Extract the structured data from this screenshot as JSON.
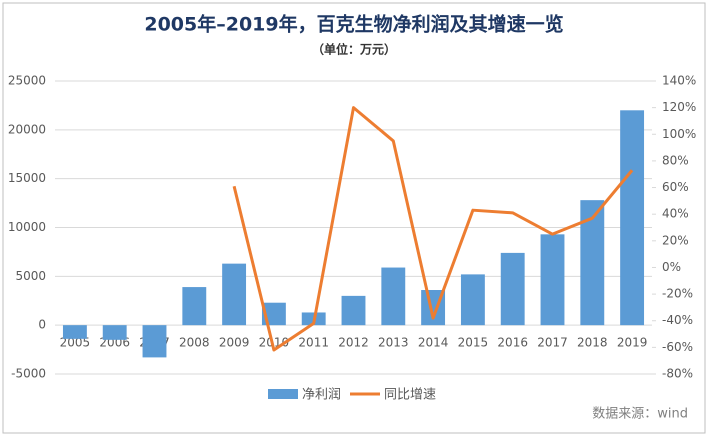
{
  "chart_data": {
    "type": "bar+line",
    "title": "2005年–2019年，百克生物净利润及其增速一览",
    "subtitle": "（单位：万元）",
    "source": "数据来源：wind",
    "categories": [
      "2005",
      "2006",
      "2007",
      "2008",
      "2009",
      "2010",
      "2011",
      "2012",
      "2013",
      "2014",
      "2015",
      "2016",
      "2017",
      "2018",
      "2019"
    ],
    "series": [
      {
        "name": "净利润",
        "type": "bar",
        "color": "#5b9bd5",
        "axis": "y",
        "values": [
          -1400,
          -1500,
          -3300,
          3900,
          6300,
          2300,
          1300,
          3000,
          5900,
          3600,
          5200,
          7400,
          9300,
          12800,
          22000
        ]
      },
      {
        "name": "同比增速",
        "type": "line",
        "color": "#ed7d31",
        "axis": "y2",
        "values": [
          null,
          null,
          null,
          null,
          61,
          -62,
          -42,
          120,
          95,
          -38,
          43,
          41,
          25,
          37,
          73
        ]
      }
    ],
    "ylim": [
      -5000,
      25000
    ],
    "yticks": [
      -5000,
      0,
      5000,
      10000,
      15000,
      20000,
      25000
    ],
    "y2lim": [
      -80,
      140
    ],
    "y2ticks": [
      {
        "value": -80,
        "label": "-80%"
      },
      {
        "value": -60,
        "label": "-60%"
      },
      {
        "value": -40,
        "label": "-40%"
      },
      {
        "value": -20,
        "label": "-20%"
      },
      {
        "value": 0,
        "label": "0%"
      },
      {
        "value": 20,
        "label": "20%"
      },
      {
        "value": 40,
        "label": "40%"
      },
      {
        "value": 60,
        "label": "60%"
      },
      {
        "value": 80,
        "label": "80%"
      },
      {
        "value": 100,
        "label": "100%"
      },
      {
        "value": 120,
        "label": "120%"
      },
      {
        "value": 140,
        "label": "140%"
      }
    ],
    "grid": true
  }
}
